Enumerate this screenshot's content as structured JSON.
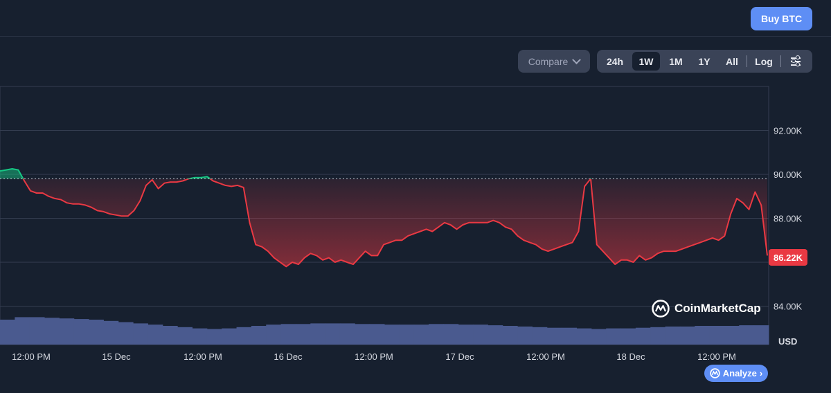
{
  "header": {
    "buy_label": "Buy BTC"
  },
  "toolbar": {
    "compare_label": "Compare",
    "ranges": [
      "24h",
      "1W",
      "1M",
      "1Y",
      "All"
    ],
    "active_range": "1W",
    "log_label": "Log"
  },
  "chart_data": {
    "type": "line",
    "unit": "USD",
    "y_ticks": [
      "92.00K",
      "90.00K",
      "88.00K",
      "84.00K"
    ],
    "x_ticks": [
      "12:00 PM",
      "15 Dec",
      "12:00 PM",
      "16 Dec",
      "12:00 PM",
      "17 Dec",
      "12:00 PM",
      "18 Dec",
      "12:00 PM"
    ],
    "current_price_label": "86.22K",
    "baseline_value": 89800,
    "ylim": [
      82250,
      94000
    ],
    "grid": true,
    "series": [
      {
        "values": [
          90150,
          90200,
          90250,
          90200,
          89700,
          89250,
          89150,
          89150,
          89000,
          88900,
          88850,
          88700,
          88650,
          88650,
          88600,
          88500,
          88350,
          88300,
          88200,
          88150,
          88100,
          88100,
          88350,
          88800,
          89500,
          89750,
          89350,
          89600,
          89650,
          89650,
          89700,
          89800,
          89850,
          89850,
          89900,
          89700,
          89600,
          89500,
          89450,
          89500,
          89400,
          87800,
          86800,
          86700,
          86500,
          86200,
          86000,
          85800,
          86000,
          85900,
          86200,
          86400,
          86300,
          86100,
          86200,
          86000,
          86100,
          86000,
          85900,
          86200,
          86500,
          86300,
          86300,
          86800,
          86900,
          87000,
          87000,
          87200,
          87300,
          87400,
          87500,
          87400,
          87600,
          87800,
          87700,
          87500,
          87700,
          87800,
          87800,
          87800,
          87800,
          87900,
          87800,
          87600,
          87500,
          87200,
          87000,
          86900,
          86800,
          86600,
          86500,
          86600,
          86700,
          86800,
          86900,
          87400,
          89450,
          89800,
          86800,
          86500,
          86200,
          85900,
          86100,
          86100,
          86000,
          86300,
          86100,
          86200,
          86400,
          86500,
          86500,
          86500,
          86600,
          86700,
          86800,
          86900,
          87000,
          87100,
          87000,
          87200,
          88200,
          88900,
          88700,
          88400,
          89200,
          88600,
          86300
        ]
      }
    ],
    "volume_series": [
      4.0,
      4.4,
      4.4,
      4.3,
      4.2,
      4.1,
      4.0,
      3.8,
      3.6,
      3.4,
      3.2,
      3.0,
      2.8,
      2.6,
      2.5,
      2.6,
      2.8,
      3.0,
      3.2,
      3.3,
      3.3,
      3.4,
      3.4,
      3.4,
      3.3,
      3.3,
      3.2,
      3.2,
      3.2,
      3.3,
      3.3,
      3.2,
      3.2,
      3.1,
      3.0,
      2.9,
      2.8,
      2.7,
      2.7,
      2.6,
      2.5,
      2.6,
      2.6,
      2.7,
      2.8,
      2.9,
      2.9,
      3.0,
      3.0,
      3.0,
      3.1,
      3.1
    ]
  },
  "watermark": {
    "brand": "CoinMarketCap"
  },
  "analyze": {
    "label": "Analyze"
  }
}
